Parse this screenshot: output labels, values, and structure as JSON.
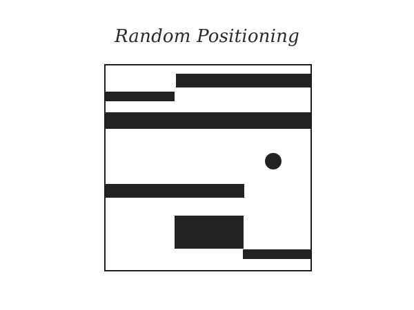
{
  "page": {
    "title": "Random Positioning"
  },
  "diagram": {
    "ink_color": "#222222",
    "frame_color": "#1e1e1e",
    "background_color": "#ffffff",
    "elements": [
      {
        "kind": "bar"
      },
      {
        "kind": "bar"
      },
      {
        "kind": "bar"
      },
      {
        "kind": "circle"
      },
      {
        "kind": "bar"
      },
      {
        "kind": "block"
      },
      {
        "kind": "bar"
      }
    ]
  }
}
